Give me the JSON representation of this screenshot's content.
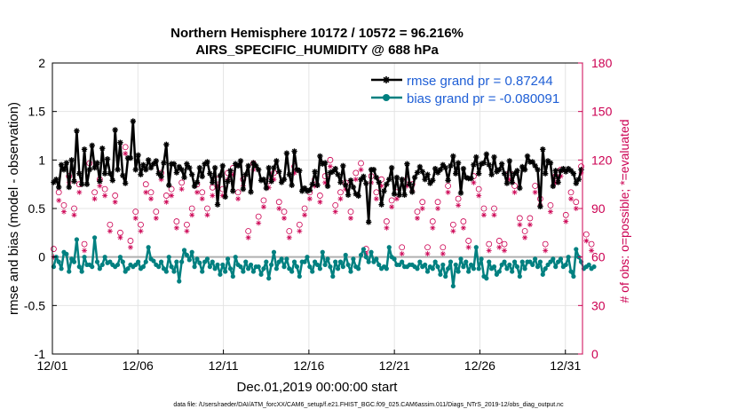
{
  "chart_data": {
    "type": "line",
    "title_line1": "Northern Hemisphere 10172 / 10572 = 96.216%",
    "title_line2": "AIRS_SPECIFIC_HUMIDITY @ 688 hPa",
    "xlabel": "Dec.01,2019 00:00:00 start",
    "ylabel_left": "rmse and bias (model - observation)",
    "ylabel_right": "# of obs: o=possible; *=evaluated",
    "footnote": "data file: /Users/raeder/DAI/ATM_forcXX/CAM6_setup/f.e21.FHIST_BGC.f09_025.CAM6assim.011/Diags_NTrS_2019-12/obs_diag_output.nc",
    "x_tick_labels": [
      "12/01",
      "12/06",
      "12/11",
      "12/16",
      "12/21",
      "12/26",
      "12/31"
    ],
    "x_tick_days": [
      1,
      6,
      11,
      16,
      21,
      26,
      31
    ],
    "xlim": [
      1,
      32
    ],
    "ylim_left": [
      -1,
      2
    ],
    "ylim_right": [
      0,
      180
    ],
    "y_ticks_left": [
      "-1",
      "-0.5",
      "0",
      "0.5",
      "1",
      "1.5",
      "2"
    ],
    "y_ticks_right": [
      "0",
      "30",
      "60",
      "90",
      "120",
      "150",
      "180"
    ],
    "grid": true,
    "legend_position": "top-right",
    "series": [
      {
        "name": "rmse grand pr = 0.87244",
        "color": "#000000",
        "marker": "asterisk",
        "axis": "left",
        "values": [
          0.77,
          0.8,
          0.72,
          0.95,
          0.9,
          0.97,
          0.72,
          1.0,
          0.78,
          1.3,
          0.86,
          0.75,
          1.11,
          0.75,
          0.9,
          1.15,
          0.92,
          0.97,
          0.78,
          1.12,
          0.86,
          1.01,
          0.86,
          0.79,
          1.31,
          0.9,
          1.18,
          0.84,
          0.76,
          1.02,
          1.02,
          1.4,
          0.9,
          1.05,
          0.85,
          0.95,
          0.9,
          1.0,
          0.92,
          0.96,
          0.99,
          0.86,
          0.83,
          0.97,
          1.16,
          0.74,
          0.96,
          0.96,
          0.87,
          0.93,
          0.9,
          0.82,
          0.96,
          0.92,
          0.85,
          0.73,
          0.77,
          0.92,
          0.83,
          0.96,
          0.98,
          0.86,
          0.77,
          0.92,
          0.54,
          0.84,
          0.94,
          0.62,
          0.78,
          0.89,
          0.68,
          0.96,
          0.94,
          0.99,
          0.7,
          0.85,
          0.94,
          0.67,
          0.97,
          0.94,
          0.9,
          0.79,
          0.8,
          0.71,
          0.92,
          0.78,
          0.92,
          0.99,
          0.88,
          0.77,
          0.8,
          1.07,
          0.85,
          0.74,
          1.09,
          0.9,
          0.89,
          0.68,
          0.71,
          0.68,
          0.69,
          0.75,
          0.88,
          0.74,
          1.04,
          0.96,
          0.97,
          0.73,
          0.87,
          0.88,
          0.91,
          0.85,
          0.77,
          0.94,
          0.74,
          0.64,
          0.79,
          0.72,
          0.65,
          0.63,
          0.8,
          0.83,
          0.76,
          0.36,
          0.9,
          0.9,
          0.82,
          0.77,
          0.54,
          0.68,
          0.75,
          0.8,
          0.92,
          0.65,
          0.82,
          0.64,
          0.8,
          0.64,
          0.96,
          0.75,
          0.67,
          0.82,
          0.87,
          0.93,
          0.88,
          0.8,
          0.85,
          0.76,
          0.79,
          0.91,
          0.87,
          0.9,
          0.95,
          0.92,
          0.79,
          0.94,
          1.04,
          0.86,
          0.97,
          0.66,
          0.91,
          0.82,
          0.81,
          0.81,
          0.95,
          1.03,
          0.86,
          0.96,
          0.97,
          1.06,
          0.95,
          0.85,
          1.03,
          0.88,
          0.9,
          0.96,
          0.86,
          0.76,
          0.99,
          0.77,
          0.86,
          0.89,
          0.71,
          0.93,
          0.9,
          1.04,
          0.98,
          0.98,
          0.94,
          0.9,
          0.52,
          1.11,
          0.86,
          0.99,
          0.97,
          0.73,
          0.89,
          0.77,
          0.89,
          0.91,
          0.88,
          0.91,
          0.89,
          0.86,
          0.76,
          0.8,
          0.9
        ]
      },
      {
        "name": "bias grand pr = -0.080091",
        "color": "#008080",
        "marker": "dot",
        "axis": "left",
        "values": [
          -0.1,
          0.0,
          -0.05,
          -0.12,
          0.05,
          0.03,
          -0.15,
          -0.02,
          -0.05,
          0.18,
          -0.1,
          -0.15,
          0.0,
          -0.08,
          -0.08,
          -0.1,
          0.2,
          -0.05,
          -0.12,
          -0.08,
          0.0,
          -0.06,
          -0.05,
          -0.08,
          -0.1,
          -0.08,
          0.0,
          -0.05,
          -0.15,
          -0.12,
          -0.08,
          -0.1,
          -0.08,
          -0.05,
          -0.12,
          -0.1,
          -0.05,
          0.1,
          -0.02,
          -0.04,
          -0.08,
          -0.1,
          -0.05,
          -0.12,
          -0.15,
          0.0,
          -0.1,
          -0.15,
          -0.05,
          -0.25,
          -0.05,
          0.07,
          0.02,
          -0.03,
          0.05,
          -0.1,
          -0.02,
          -0.06,
          -0.15,
          -0.05,
          -0.02,
          -0.1,
          -0.05,
          -0.12,
          -0.08,
          -0.18,
          -0.08,
          -0.15,
          -0.02,
          -0.12,
          -0.2,
          0.0,
          -0.08,
          -0.1,
          -0.15,
          -0.05,
          -0.12,
          -0.08,
          -0.15,
          -0.1,
          -0.1,
          -0.18,
          -0.12,
          -0.05,
          -0.22,
          -0.08,
          0.05,
          -0.12,
          -0.05,
          -0.02,
          -0.1,
          -0.02,
          -0.12,
          -0.15,
          -0.05,
          -0.1,
          -0.2,
          -0.05,
          -0.05,
          0.0,
          -0.1,
          -0.15,
          -0.05,
          -0.08,
          -0.12,
          0.05,
          -0.08,
          -0.02,
          -0.1,
          -0.2,
          -0.05,
          -0.12,
          -0.05,
          -0.1,
          0.02,
          -0.08,
          -0.15,
          -0.02,
          -0.1,
          -0.12,
          0.02,
          0.08,
          0.0,
          -0.05,
          0.05,
          -0.05,
          -0.02,
          -0.08,
          -0.12,
          -0.1,
          -0.12,
          0.1,
          0.0,
          -0.02,
          -0.08,
          -0.08,
          -0.05,
          -0.1,
          -0.1,
          -0.08,
          -0.08,
          -0.1,
          -0.12,
          -0.05,
          -0.1,
          -0.08,
          -0.15,
          -0.1,
          -0.12,
          -0.05,
          -0.1,
          -0.18,
          -0.08,
          -0.2,
          -0.12,
          -0.05,
          -0.3,
          -0.08,
          -0.15,
          -0.02,
          -0.1,
          -0.05,
          -0.15,
          -0.08,
          -0.12,
          0.1,
          -0.12,
          -0.02,
          -0.2,
          -0.22,
          -0.05,
          -0.12,
          -0.1,
          -0.18,
          -0.15,
          -0.08,
          -0.05,
          -0.12,
          -0.08,
          -0.15,
          -0.05,
          -0.1,
          -0.2,
          -0.05,
          -0.12,
          -0.05,
          -0.05,
          -0.08,
          -0.02,
          -0.1,
          -0.05,
          -0.18,
          -0.12,
          -0.08,
          -0.05,
          -0.02,
          -0.1,
          -0.05,
          -0.02,
          -0.1,
          -0.08,
          0.0,
          -0.15,
          -0.2,
          0.08,
          0.0,
          -0.05,
          -0.12,
          -0.1,
          -0.08,
          -0.12,
          -0.1
        ]
      },
      {
        "name": "possible",
        "color": "#cc0052",
        "marker": "circle",
        "axis": "right",
        "values": [
          65,
          110,
          100,
          115,
          92,
          80,
          110,
          68,
          90,
          115,
          105,
          90,
          68,
          75,
          118,
          85,
          100,
          65,
          108,
          92,
          102,
          67,
          80,
          118,
          98,
          110,
          75,
          86,
          128,
          100,
          70,
          106,
          88,
          122,
          80,
          92,
          105,
          70,
          100,
          116,
          88,
          80,
          112,
          94,
          98,
          64,
          102,
          90,
          82,
          113,
          106,
          95,
          80,
          110,
          90,
          92,
          105,
          78,
          100,
          118,
          90,
          84,
          103,
          65,
          108,
          88,
          102,
          80,
          112,
          88,
          115,
          92,
          100,
          82,
          108,
          110,
          76,
          98,
          118,
          104,
          85,
          110,
          95,
          80,
          107,
          100,
          112,
          70,
          94,
          102,
          88,
          110,
          76,
          100,
          116,
          95,
          80,
          110,
          90,
          84,
          100,
          78,
          108,
          88,
          98,
          62,
          110,
          96,
          120,
          80,
          92,
          115,
          100,
          78,
          106,
          110,
          88,
          90,
          112,
          84,
          118,
          94,
          65,
          105,
          110,
          96,
          100,
          82,
          108,
          114,
          82,
          65,
          95,
          96,
          100,
          110,
          66,
          96,
          108,
          60,
          105,
          86,
          88,
          105,
          94,
          118,
          66,
          105,
          82,
          110,
          94,
          84,
          66,
          90,
          104,
          94,
          80,
          110,
          96,
          96,
          82,
          114,
          70,
          90,
          110,
          70,
          102,
          80,
          90,
          75,
          68,
          116,
          90,
          84,
          70,
          100,
          68,
          92,
          112,
          76,
          104,
          90,
          84,
          96,
          76,
          112,
          84,
          90,
          104,
          82,
          96,
          108,
          68,
          100,
          92,
          66,
          110,
          82,
          114,
          92,
          86,
          76,
          100,
          64,
          94,
          106,
          116,
          82,
          74,
          110,
          68,
          60
        ]
      },
      {
        "name": "evaluated",
        "color": "#cc0052",
        "marker": "asterisk",
        "axis": "right",
        "values": [
          60,
          106,
          95,
          112,
          88,
          76,
          106,
          64,
          86,
          110,
          100,
          86,
          64,
          72,
          114,
          82,
          96,
          62,
          104,
          88,
          98,
          63,
          76,
          114,
          94,
          106,
          72,
          82,
          124,
          96,
          66,
          102,
          84,
          118,
          76,
          88,
          100,
          66,
          96,
          112,
          84,
          76,
          108,
          90,
          94,
          60,
          98,
          86,
          78,
          108,
          102,
          90,
          76,
          106,
          86,
          88,
          100,
          74,
          96,
          114,
          86,
          80,
          98,
          62,
          104,
          84,
          98,
          76,
          108,
          84,
          111,
          88,
          96,
          78,
          104,
          106,
          72,
          94,
          114,
          100,
          81,
          106,
          91,
          76,
          103,
          96,
          108,
          66,
          90,
          98,
          84,
          106,
          72,
          96,
          112,
          91,
          76,
          106,
          86,
          80,
          96,
          74,
          104,
          84,
          94,
          58,
          106,
          92,
          116,
          76,
          88,
          111,
          96,
          74,
          102,
          106,
          84,
          86,
          108,
          80,
          114,
          90,
          62,
          101,
          106,
          92,
          96,
          78,
          104,
          110,
          78,
          62,
          91,
          92,
          96,
          106,
          62,
          92,
          104,
          56,
          101,
          82,
          84,
          101,
          90,
          114,
          62,
          101,
          78,
          106,
          90,
          80,
          62,
          86,
          100,
          90,
          76,
          106,
          92,
          92,
          78,
          110,
          66,
          86,
          106,
          66,
          98,
          76,
          86,
          71,
          64,
          112,
          86,
          80,
          66,
          96,
          64,
          88,
          108,
          72,
          100,
          86,
          80,
          92,
          72,
          108,
          80,
          86,
          100,
          78,
          92,
          104,
          64,
          96,
          88,
          62,
          106,
          78,
          110,
          88,
          82,
          72,
          96,
          60,
          90,
          102,
          112,
          78,
          70,
          106,
          64,
          56
        ]
      }
    ]
  }
}
